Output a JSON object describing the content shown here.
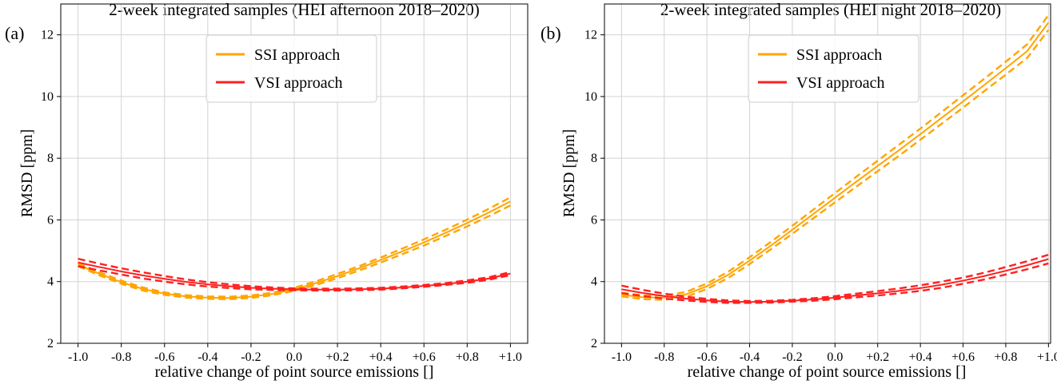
{
  "chart_data": [
    {
      "type": "line",
      "panel_label": "(a)",
      "title": "2-week integrated samples (HEI afternoon 2018–2020)",
      "xlabel": "relative change of point source emissions []",
      "ylabel": "RMSD [ppm]",
      "xlim": [
        -1.08,
        1.08
      ],
      "ylim": [
        2,
        13
      ],
      "xticks": [
        -1.0,
        -0.8,
        -0.6,
        -0.4,
        -0.2,
        0.0,
        0.2,
        0.4,
        0.6,
        0.8,
        1.0
      ],
      "xtick_labels": [
        "-1.0",
        "-0.8",
        "-0.6",
        "-0.4",
        "-0.2",
        "0.0",
        "+0.2",
        "+0.4",
        "+0.6",
        "+0.8",
        "+1.0"
      ],
      "yticks": [
        2,
        4,
        6,
        8,
        10,
        12
      ],
      "ytick_labels": [
        "2",
        "4",
        "6",
        "8",
        "10",
        "12"
      ],
      "grid": true,
      "legend_position": "top-center",
      "x": [
        -1.0,
        -0.9,
        -0.8,
        -0.7,
        -0.6,
        -0.5,
        -0.4,
        -0.3,
        -0.2,
        -0.1,
        0.0,
        0.1,
        0.2,
        0.3,
        0.4,
        0.5,
        0.6,
        0.7,
        0.8,
        0.9,
        1.0
      ],
      "series": [
        {
          "name": "SSI approach",
          "color": "#FFA500",
          "values": [
            4.55,
            4.25,
            3.98,
            3.76,
            3.61,
            3.52,
            3.48,
            3.47,
            3.51,
            3.6,
            3.75,
            3.95,
            4.18,
            4.43,
            4.7,
            4.98,
            5.27,
            5.58,
            5.9,
            6.24,
            6.6
          ],
          "band_halfwidth": [
            0.05,
            0.05,
            0.05,
            0.05,
            0.04,
            0.04,
            0.04,
            0.04,
            0.04,
            0.04,
            0.05,
            0.06,
            0.07,
            0.07,
            0.08,
            0.09,
            0.1,
            0.1,
            0.11,
            0.12,
            0.13
          ]
        },
        {
          "name": "VSI approach",
          "color": "#FF2020",
          "values": [
            4.62,
            4.47,
            4.33,
            4.2,
            4.09,
            3.99,
            3.91,
            3.85,
            3.8,
            3.77,
            3.75,
            3.74,
            3.74,
            3.75,
            3.77,
            3.81,
            3.86,
            3.92,
            4.0,
            4.1,
            4.26
          ],
          "band_halfwidth": [
            0.12,
            0.11,
            0.1,
            0.1,
            0.09,
            0.08,
            0.07,
            0.06,
            0.05,
            0.04,
            0.03,
            0.03,
            0.03,
            0.03,
            0.03,
            0.03,
            0.03,
            0.03,
            0.04,
            0.04,
            0.05
          ]
        }
      ]
    },
    {
      "type": "line",
      "panel_label": "(b)",
      "title": "2-week integrated samples (HEI night 2018–2020)",
      "xlabel": "relative change of point source emissions []",
      "ylabel": "RMSD [ppm]",
      "xlim": [
        -1.08,
        1.01
      ],
      "ylim": [
        2,
        13
      ],
      "xticks": [
        -1.0,
        -0.8,
        -0.6,
        -0.4,
        -0.2,
        0.0,
        0.2,
        0.4,
        0.6,
        0.8,
        1.0
      ],
      "xtick_labels": [
        "-1.0",
        "-0.8",
        "-0.6",
        "-0.4",
        "-0.2",
        "0.0",
        "+0.2",
        "+0.4",
        "+0.6",
        "+0.8",
        "+1.0"
      ],
      "yticks": [
        2,
        4,
        6,
        8,
        10,
        12
      ],
      "ytick_labels": [
        "2",
        "4",
        "6",
        "8",
        "10",
        "12"
      ],
      "grid": true,
      "legend_position": "top-center",
      "x": [
        -1.0,
        -0.9,
        -0.8,
        -0.7,
        -0.6,
        -0.5,
        -0.4,
        -0.3,
        -0.2,
        -0.1,
        0.0,
        0.1,
        0.2,
        0.3,
        0.4,
        0.5,
        0.6,
        0.7,
        0.8,
        0.9,
        1.0
      ],
      "series": [
        {
          "name": "SSI approach",
          "color": "#FFA500",
          "values": [
            3.58,
            3.49,
            3.48,
            3.58,
            3.85,
            4.22,
            4.68,
            5.17,
            5.68,
            6.2,
            6.72,
            7.24,
            7.75,
            8.26,
            8.78,
            9.31,
            9.84,
            10.38,
            10.92,
            11.47,
            12.4
          ],
          "band_halfwidth": [
            0.06,
            0.06,
            0.07,
            0.08,
            0.09,
            0.1,
            0.11,
            0.12,
            0.13,
            0.14,
            0.15,
            0.16,
            0.17,
            0.18,
            0.18,
            0.19,
            0.2,
            0.2,
            0.21,
            0.22,
            0.24
          ]
        },
        {
          "name": "VSI approach",
          "color": "#FF2020",
          "values": [
            3.75,
            3.63,
            3.53,
            3.45,
            3.39,
            3.35,
            3.34,
            3.35,
            3.38,
            3.42,
            3.48,
            3.55,
            3.62,
            3.7,
            3.79,
            3.9,
            4.03,
            4.18,
            4.35,
            4.53,
            4.73
          ],
          "band_halfwidth": [
            0.12,
            0.1,
            0.08,
            0.06,
            0.05,
            0.04,
            0.03,
            0.03,
            0.03,
            0.04,
            0.05,
            0.06,
            0.07,
            0.08,
            0.09,
            0.1,
            0.1,
            0.11,
            0.12,
            0.13,
            0.14
          ]
        }
      ]
    }
  ]
}
